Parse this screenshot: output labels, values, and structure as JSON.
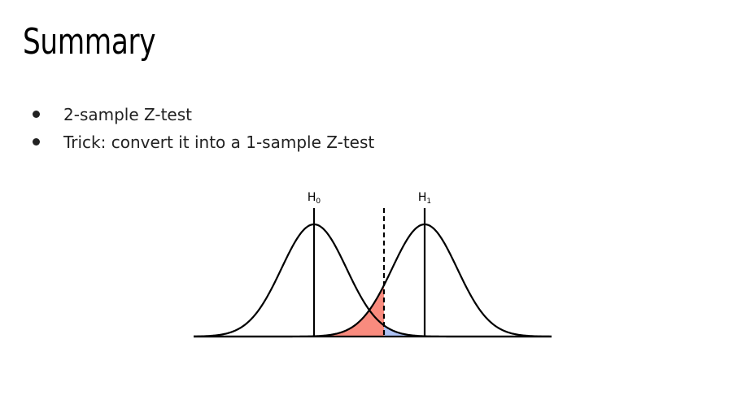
{
  "slide": {
    "title": "Summary",
    "bullets": [
      "2-sample Z-test",
      "Trick: convert it into a 1-sample Z-test"
    ]
  },
  "figure": {
    "h0_label": "H",
    "h0_subscript": "0",
    "h1_label": "H",
    "h1_subscript": "1"
  },
  "colors": {
    "alpha_region": "#f98b7e",
    "beta_region": "#aec3f5",
    "curve": "#000000"
  }
}
